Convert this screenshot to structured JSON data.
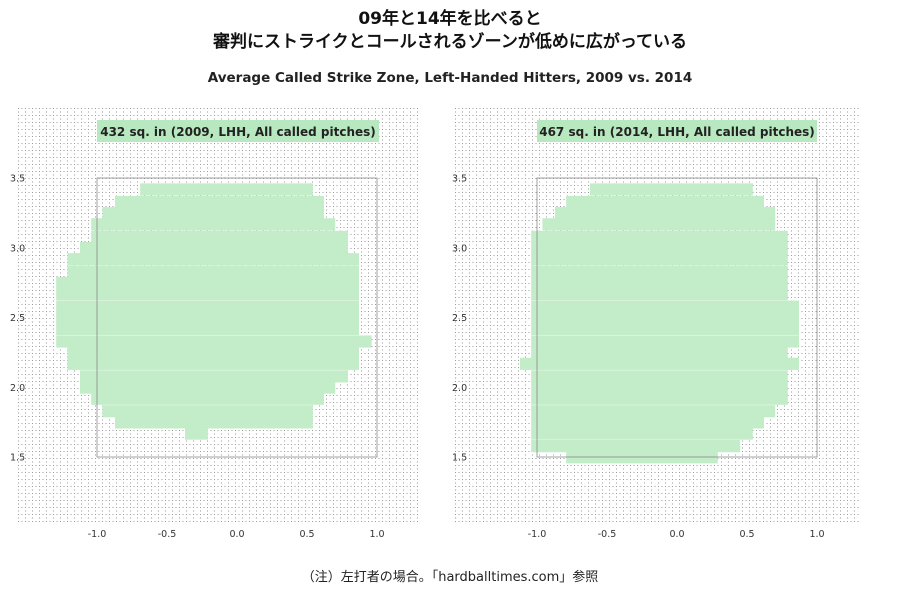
{
  "title": {
    "line1": "09年と14年を比べると",
    "line2": "審判にストライクとコールされるゾーンが低めに広がっている"
  },
  "subtitle": "Average Called Strike Zone, Left-Handed Hitters, 2009 vs. 2014",
  "footnote": "（注）左打者の場合。「hardballtimes.com」参照",
  "colors": {
    "zone_fill": "#c3ecc8",
    "label_fill": "#b8e8bf",
    "grid_dot": "#9a9a9a",
    "box_line": "#8a8a8a"
  },
  "chart_data": [
    {
      "type": "heatmap",
      "label": "432 sq. in (2009, LHH, All called pitches)",
      "x_ticks": [
        "-1.0",
        "-0.5",
        "0.0",
        "0.5",
        "1.0"
      ],
      "y_ticks": [
        "3.5",
        "3.0",
        "2.5",
        "2.0",
        "1.5"
      ],
      "xlim": [
        -1.5,
        1.5
      ],
      "ylim": [
        1.0,
        3.9
      ],
      "rulebook_box": {
        "x": [
          -1.0,
          1.0
        ],
        "y": [
          1.5,
          3.5
        ]
      },
      "cell_size": 0.083,
      "rows": [
        {
          "y": 3.42,
          "x": [
            -0.65,
            0.5
          ]
        },
        {
          "y": 3.33,
          "x": [
            -0.83,
            0.58
          ]
        },
        {
          "y": 3.25,
          "x": [
            -0.92,
            0.58
          ]
        },
        {
          "y": 3.17,
          "x": [
            -1.0,
            0.66
          ]
        },
        {
          "y": 3.08,
          "x": [
            -1.0,
            0.75
          ]
        },
        {
          "y": 3.0,
          "x": [
            -1.08,
            0.75
          ]
        },
        {
          "y": 2.92,
          "x": [
            -1.17,
            0.83
          ]
        },
        {
          "y": 2.83,
          "x": [
            -1.17,
            0.83
          ]
        },
        {
          "y": 2.75,
          "x": [
            -1.25,
            0.83
          ]
        },
        {
          "y": 2.67,
          "x": [
            -1.25,
            0.83
          ]
        },
        {
          "y": 2.58,
          "x": [
            -1.25,
            0.83
          ]
        },
        {
          "y": 2.5,
          "x": [
            -1.25,
            0.83
          ]
        },
        {
          "y": 2.42,
          "x": [
            -1.25,
            0.83
          ]
        },
        {
          "y": 2.33,
          "x": [
            -1.25,
            0.92
          ]
        },
        {
          "y": 2.25,
          "x": [
            -1.17,
            0.83
          ]
        },
        {
          "y": 2.17,
          "x": [
            -1.17,
            0.83
          ]
        },
        {
          "y": 2.08,
          "x": [
            -1.08,
            0.75
          ]
        },
        {
          "y": 2.0,
          "x": [
            -1.08,
            0.66
          ]
        },
        {
          "y": 1.92,
          "x": [
            -1.0,
            0.58
          ]
        },
        {
          "y": 1.83,
          "x": [
            -0.92,
            0.5
          ]
        },
        {
          "y": 1.75,
          "x": [
            -0.83,
            0.5
          ]
        },
        {
          "y": 1.67,
          "x": [
            -0.33,
            -0.25
          ]
        }
      ]
    },
    {
      "type": "heatmap",
      "label": "467 sq. in (2014, LHH, All called pitches)",
      "x_ticks": [
        "-1.0",
        "-0.5",
        "0.0",
        "0.5",
        "1.0"
      ],
      "y_ticks": [
        "3.5",
        "3.0",
        "2.5",
        "2.0",
        "1.5"
      ],
      "xlim": [
        -1.5,
        1.5
      ],
      "ylim": [
        1.0,
        3.9
      ],
      "rulebook_box": {
        "x": [
          -1.0,
          1.0
        ],
        "y": [
          1.5,
          3.5
        ]
      },
      "cell_size": 0.083,
      "rows": [
        {
          "y": 3.42,
          "x": [
            -0.58,
            0.5
          ]
        },
        {
          "y": 3.33,
          "x": [
            -0.75,
            0.58
          ]
        },
        {
          "y": 3.25,
          "x": [
            -0.83,
            0.66
          ]
        },
        {
          "y": 3.17,
          "x": [
            -0.92,
            0.66
          ]
        },
        {
          "y": 3.08,
          "x": [
            -1.0,
            0.75
          ]
        },
        {
          "y": 3.0,
          "x": [
            -1.0,
            0.75
          ]
        },
        {
          "y": 2.92,
          "x": [
            -1.0,
            0.75
          ]
        },
        {
          "y": 2.83,
          "x": [
            -1.0,
            0.75
          ]
        },
        {
          "y": 2.75,
          "x": [
            -1.0,
            0.75
          ]
        },
        {
          "y": 2.67,
          "x": [
            -1.0,
            0.75
          ]
        },
        {
          "y": 2.58,
          "x": [
            -1.0,
            0.83
          ]
        },
        {
          "y": 2.5,
          "x": [
            -1.0,
            0.83
          ]
        },
        {
          "y": 2.42,
          "x": [
            -1.0,
            0.83
          ]
        },
        {
          "y": 2.33,
          "x": [
            -1.0,
            0.83
          ]
        },
        {
          "y": 2.25,
          "x": [
            -1.0,
            0.75
          ]
        },
        {
          "y": 2.17,
          "x": [
            -1.08,
            0.83
          ]
        },
        {
          "y": 2.08,
          "x": [
            -1.0,
            0.75
          ]
        },
        {
          "y": 2.0,
          "x": [
            -1.0,
            0.75
          ]
        },
        {
          "y": 1.92,
          "x": [
            -1.0,
            0.75
          ]
        },
        {
          "y": 1.83,
          "x": [
            -1.0,
            0.66
          ]
        },
        {
          "y": 1.75,
          "x": [
            -1.0,
            0.58
          ]
        },
        {
          "y": 1.67,
          "x": [
            -1.0,
            0.5
          ]
        },
        {
          "y": 1.58,
          "x": [
            -1.0,
            0.41
          ]
        },
        {
          "y": 1.5,
          "x": [
            -0.75,
            0.25
          ]
        }
      ]
    }
  ]
}
